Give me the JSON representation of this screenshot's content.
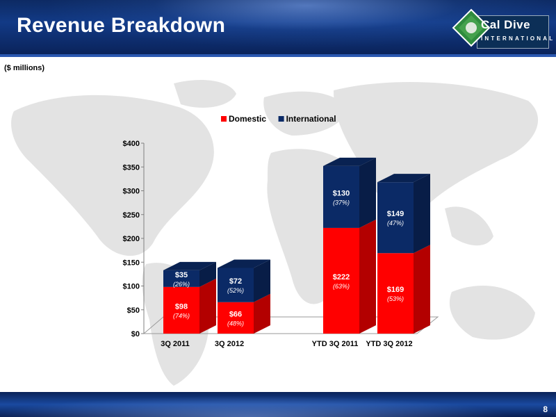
{
  "header": {
    "title": "Revenue Breakdown"
  },
  "logo": {
    "name": "Cal Dive",
    "sub": "INTERNATIONAL"
  },
  "units_label": "($ millions)",
  "page_number": "8",
  "colors": {
    "domestic": "#ff0000",
    "international": "#0b2a66"
  },
  "chart_data": {
    "type": "bar",
    "stacked": true,
    "categories": [
      "3Q 2011",
      "3Q 2012",
      "YTD 3Q 2011",
      "YTD 3Q 2012"
    ],
    "series": [
      {
        "name": "Domestic",
        "values": [
          98,
          66,
          222,
          169
        ],
        "value_labels": [
          "$98",
          "$66",
          "$222",
          "$169"
        ],
        "pct_labels": [
          "(74%)",
          "(48%)",
          "(63%)",
          "(53%)"
        ]
      },
      {
        "name": "International",
        "values": [
          35,
          72,
          130,
          149
        ],
        "value_labels": [
          "$35",
          "$72",
          "$130",
          "$149"
        ],
        "pct_labels": [
          "(26%)",
          "(52%)",
          "(37%)",
          "(47%)"
        ]
      }
    ],
    "ylim": [
      0,
      400
    ],
    "yticks": [
      "$0",
      "$50",
      "$100",
      "$150",
      "$200",
      "$250",
      "$300",
      "$350",
      "$400"
    ],
    "legend_position": "top",
    "grid": false
  }
}
